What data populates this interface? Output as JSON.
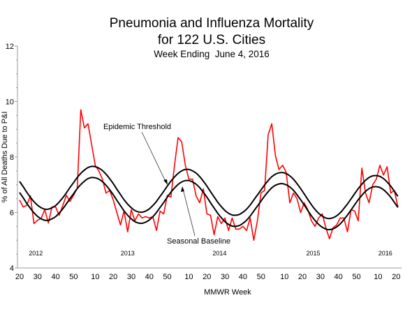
{
  "chart_data": {
    "type": "line",
    "title": "Pneumonia and Influenza Mortality",
    "title_line2": "for 122 U.S. Cities",
    "subtitle": "Week Ending  June 4, 2016",
    "xlabel": "MMWR Week",
    "ylabel": "% of All Deaths Due to P&I",
    "ylim": [
      4,
      12
    ],
    "y_ticks": [
      "4",
      "6",
      "8",
      "10",
      "12"
    ],
    "x_ticks": [
      {
        "year": 2012,
        "week": 20,
        "label": "20"
      },
      {
        "year": 2012,
        "week": 30,
        "label": "30"
      },
      {
        "year": 2012,
        "week": 40,
        "label": "40"
      },
      {
        "year": 2012,
        "week": 50,
        "label": "50"
      },
      {
        "year": 2013,
        "week": 10,
        "label": "10"
      },
      {
        "year": 2013,
        "week": 20,
        "label": "20"
      },
      {
        "year": 2013,
        "week": 30,
        "label": "30"
      },
      {
        "year": 2013,
        "week": 40,
        "label": "40"
      },
      {
        "year": 2013,
        "week": 50,
        "label": "50"
      },
      {
        "year": 2014,
        "week": 10,
        "label": "10"
      },
      {
        "year": 2014,
        "week": 20,
        "label": "20"
      },
      {
        "year": 2014,
        "week": 30,
        "label": "30"
      },
      {
        "year": 2014,
        "week": 40,
        "label": "40"
      },
      {
        "year": 2014,
        "week": 50,
        "label": "50"
      },
      {
        "year": 2015,
        "week": 10,
        "label": "10"
      },
      {
        "year": 2015,
        "week": 20,
        "label": "20"
      },
      {
        "year": 2015,
        "week": 30,
        "label": "30"
      },
      {
        "year": 2015,
        "week": 40,
        "label": "40"
      },
      {
        "year": 2015,
        "week": 50,
        "label": "50"
      },
      {
        "year": 2016,
        "week": 10,
        "label": "10"
      },
      {
        "year": 2016,
        "week": 20,
        "label": "20"
      }
    ],
    "year_labels": [
      "2012",
      "2013",
      "2014",
      "2015",
      "2016"
    ],
    "grid": false,
    "annotations": {
      "threshold": "Epidemic Threshold",
      "baseline": "Seasonal Baseline"
    },
    "colors": {
      "observed": "#ff0000",
      "baseline": "#000000",
      "threshold": "#000000"
    },
    "x": [
      "2012-20",
      "2012-22",
      "2012-24",
      "2012-26",
      "2012-28",
      "2012-30",
      "2012-32",
      "2012-34",
      "2012-36",
      "2012-38",
      "2012-40",
      "2012-42",
      "2012-44",
      "2012-46",
      "2012-48",
      "2012-50",
      "2012-52",
      "2013-02",
      "2013-04",
      "2013-06",
      "2013-08",
      "2013-10",
      "2013-12",
      "2013-14",
      "2013-16",
      "2013-18",
      "2013-20",
      "2013-22",
      "2013-24",
      "2013-26",
      "2013-28",
      "2013-30",
      "2013-32",
      "2013-34",
      "2013-36",
      "2013-38",
      "2013-40",
      "2013-42",
      "2013-44",
      "2013-46",
      "2013-48",
      "2013-50",
      "2013-52",
      "2014-02",
      "2014-04",
      "2014-06",
      "2014-08",
      "2014-10",
      "2014-12",
      "2014-14",
      "2014-16",
      "2014-18",
      "2014-20",
      "2014-22",
      "2014-24",
      "2014-26",
      "2014-28",
      "2014-30",
      "2014-32",
      "2014-34",
      "2014-36",
      "2014-38",
      "2014-40",
      "2014-42",
      "2014-44",
      "2014-46",
      "2014-48",
      "2014-50",
      "2014-52",
      "2015-01",
      "2015-03",
      "2015-05",
      "2015-07",
      "2015-09",
      "2015-11",
      "2015-13",
      "2015-15",
      "2015-17",
      "2015-19",
      "2015-21",
      "2015-23",
      "2015-25",
      "2015-27",
      "2015-29",
      "2015-31",
      "2015-33",
      "2015-35",
      "2015-37",
      "2015-39",
      "2015-41",
      "2015-43",
      "2015-45",
      "2015-47",
      "2015-49",
      "2015-51",
      "2016-01",
      "2016-03",
      "2016-05",
      "2016-07",
      "2016-09",
      "2016-11",
      "2016-13",
      "2016-15",
      "2016-17",
      "2016-19",
      "2016-21"
    ],
    "series": [
      {
        "key": "observed",
        "values": [
          6.45,
          6.2,
          6.26,
          6.6,
          5.6,
          5.72,
          5.79,
          6.1,
          5.62,
          6.2,
          6.2,
          5.9,
          6.25,
          6.62,
          6.4,
          6.62,
          6.87,
          9.7,
          9.05,
          9.2,
          8.45,
          7.7,
          7.5,
          7.2,
          6.7,
          6.8,
          6.45,
          6.0,
          5.55,
          6.05,
          5.3,
          6.1,
          5.7,
          5.95,
          5.8,
          5.85,
          5.8,
          5.85,
          5.35,
          6.05,
          5.95,
          6.62,
          6.55,
          7.7,
          8.7,
          8.55,
          7.7,
          7.2,
          7.2,
          6.6,
          6.35,
          6.85,
          5.95,
          5.9,
          5.2,
          5.85,
          5.6,
          5.8,
          5.35,
          5.8,
          5.4,
          5.4,
          5.5,
          5.35,
          5.8,
          5.0,
          5.7,
          6.7,
          6.8,
          8.8,
          9.2,
          8.05,
          7.55,
          7.7,
          7.45,
          6.35,
          6.7,
          6.5,
          6.0,
          6.35,
          6.1,
          5.7,
          5.5,
          5.8,
          5.95,
          5.45,
          5.05,
          5.45,
          5.55,
          5.8,
          5.8,
          5.3,
          6.1,
          6.05,
          5.7,
          7.6,
          6.7,
          6.35,
          7.0,
          7.2,
          7.7,
          7.35,
          7.65,
          6.7,
          6.8,
          6.2
        ]
      },
      {
        "key": "baseline",
        "name": "Seasonal Baseline",
        "values": [
          6.72,
          6.53,
          6.33,
          6.15,
          5.99,
          5.86,
          5.77,
          5.72,
          5.72,
          5.77,
          5.85,
          5.98,
          6.13,
          6.31,
          6.5,
          6.68,
          6.86,
          7.01,
          7.13,
          7.22,
          7.26,
          7.25,
          7.2,
          7.11,
          6.98,
          6.82,
          6.64,
          6.44,
          6.25,
          6.06,
          5.9,
          5.77,
          5.67,
          5.62,
          5.61,
          5.65,
          5.73,
          5.85,
          6.0,
          6.18,
          6.36,
          6.55,
          6.73,
          6.88,
          7.01,
          7.1,
          7.15,
          7.15,
          7.1,
          7.02,
          6.89,
          6.73,
          6.55,
          6.35,
          6.16,
          5.97,
          5.81,
          5.67,
          5.57,
          5.51,
          5.5,
          5.53,
          5.61,
          5.72,
          5.87,
          6.05,
          6.23,
          6.41,
          6.59,
          6.75,
          6.89,
          6.98,
          7.03,
          7.04,
          7.0,
          6.92,
          6.8,
          6.64,
          6.46,
          6.27,
          6.07,
          5.88,
          5.71,
          5.57,
          5.47,
          5.4,
          5.38,
          5.41,
          5.48,
          5.59,
          5.74,
          5.91,
          6.09,
          6.28,
          6.46,
          6.62,
          6.76,
          6.86,
          6.92,
          6.93,
          6.9,
          6.82,
          6.7,
          6.55,
          6.37,
          6.18
        ]
      },
      {
        "key": "threshold",
        "name": "Epidemic Threshold",
        "values": [
          7.12,
          6.93,
          6.73,
          6.55,
          6.39,
          6.26,
          6.17,
          6.12,
          6.12,
          6.17,
          6.25,
          6.38,
          6.53,
          6.71,
          6.9,
          7.08,
          7.26,
          7.41,
          7.53,
          7.62,
          7.66,
          7.65,
          7.6,
          7.51,
          7.38,
          7.22,
          7.04,
          6.84,
          6.65,
          6.46,
          6.3,
          6.17,
          6.07,
          6.02,
          6.01,
          6.05,
          6.13,
          6.25,
          6.4,
          6.58,
          6.76,
          6.95,
          7.13,
          7.28,
          7.41,
          7.5,
          7.55,
          7.55,
          7.5,
          7.42,
          7.29,
          7.13,
          6.95,
          6.75,
          6.56,
          6.37,
          6.21,
          6.07,
          5.97,
          5.91,
          5.9,
          5.93,
          6.01,
          6.12,
          6.27,
          6.45,
          6.63,
          6.81,
          6.99,
          7.15,
          7.29,
          7.38,
          7.43,
          7.44,
          7.4,
          7.32,
          7.2,
          7.04,
          6.86,
          6.67,
          6.47,
          6.28,
          6.11,
          5.97,
          5.87,
          5.8,
          5.78,
          5.81,
          5.88,
          5.99,
          6.14,
          6.31,
          6.49,
          6.68,
          6.86,
          7.02,
          7.16,
          7.26,
          7.32,
          7.33,
          7.3,
          7.22,
          7.1,
          6.95,
          6.77,
          6.58
        ]
      }
    ]
  }
}
